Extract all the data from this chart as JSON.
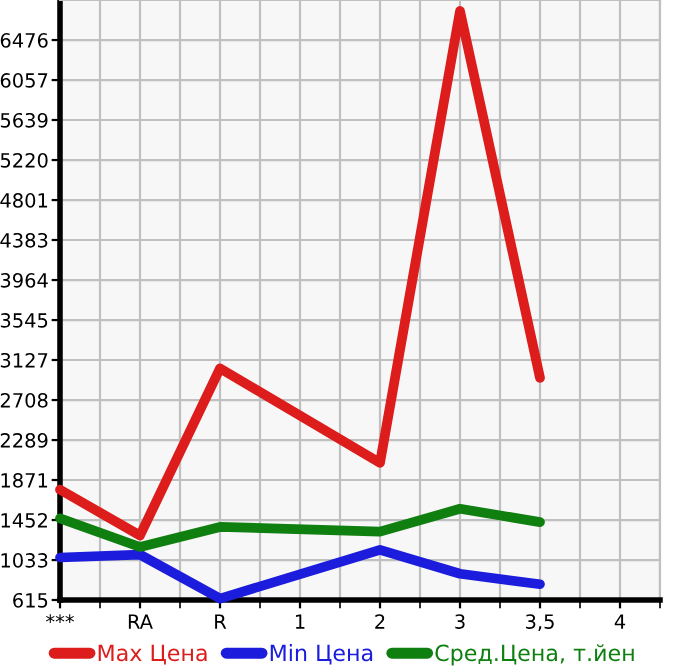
{
  "chart_data": {
    "type": "line",
    "categories": [
      "***",
      "RA",
      "R",
      "1",
      "2",
      "3",
      "3,5",
      "4"
    ],
    "series": [
      {
        "name": "Max Цена",
        "color": "#dd1c1c",
        "values": [
          1770,
          1290,
          3040,
          null,
          2050,
          6780,
          2940,
          null
        ]
      },
      {
        "name": "Min Цена",
        "color": "#1c1cdd",
        "values": [
          1060,
          1090,
          630,
          null,
          1140,
          890,
          780,
          null
        ]
      },
      {
        "name": "Сред.Цена, т.йен",
        "color": "#0f7f0f",
        "values": [
          1470,
          1170,
          1380,
          null,
          1330,
          1570,
          1430,
          null
        ]
      }
    ],
    "ylim": [
      615,
      6895
    ],
    "yticks": [
      615,
      1033,
      1452,
      1871,
      2289,
      2708,
      3127,
      3545,
      3964,
      4383,
      4801,
      5220,
      5639,
      6057,
      6476
    ],
    "grid": true,
    "legend": "bottom",
    "marker": "none",
    "line_style": "solid"
  }
}
